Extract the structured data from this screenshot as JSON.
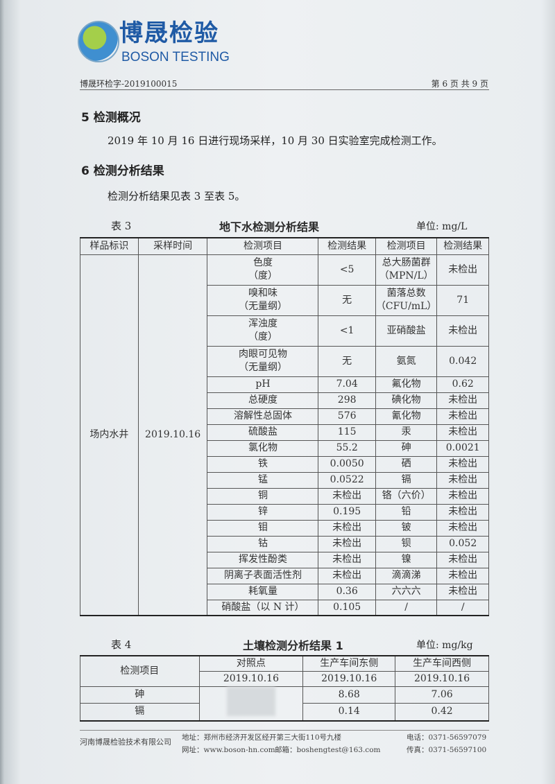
{
  "header": {
    "logo_cn": "博晟检验",
    "logo_en": "BOSON TESTING",
    "report_no": "博晟环检字-2019100015",
    "page_info": "第 6 页 共 9 页"
  },
  "section5": {
    "title": "5 检测概况",
    "text": "2019 年 10 月 16 日进行现场采样，10 月 30 日实验室完成检测工作。"
  },
  "section6": {
    "title": "6 检测分析结果",
    "text": "检测分析结果见表 3 至表 5。"
  },
  "table3": {
    "label": "表 3",
    "title": "地下水检测分析结果",
    "unit": "单位:  mg/L",
    "headers": [
      "样品标识",
      "采样时间",
      "检测项目",
      "检测结果",
      "检测项目",
      "检测结果"
    ],
    "sample_id": "场内水井",
    "sample_date": "2019.10.16",
    "rows": [
      [
        "色度\n（度）",
        "<5",
        "总大肠菌群\n（MPN/L）",
        "未检出"
      ],
      [
        "嗅和味\n（无量纲）",
        "无",
        "菌落总数\n（CFU/mL）",
        "71"
      ],
      [
        "浑浊度\n（度）",
        "<1",
        "亚硝酸盐",
        "未检出"
      ],
      [
        "肉眼可见物\n（无量纲）",
        "无",
        "氨氮",
        "0.042"
      ],
      [
        "pH",
        "7.04",
        "氟化物",
        "0.62"
      ],
      [
        "总硬度",
        "298",
        "碘化物",
        "未检出"
      ],
      [
        "溶解性总固体",
        "576",
        "氰化物",
        "未检出"
      ],
      [
        "硫酸盐",
        "115",
        "汞",
        "未检出"
      ],
      [
        "氯化物",
        "55.2",
        "砷",
        "0.0021"
      ],
      [
        "铁",
        "0.0050",
        "硒",
        "未检出"
      ],
      [
        "锰",
        "0.0522",
        "镉",
        "未检出"
      ],
      [
        "铜",
        "未检出",
        "铬（六价）",
        "未检出"
      ],
      [
        "锌",
        "0.195",
        "铅",
        "未检出"
      ],
      [
        "钼",
        "未检出",
        "铍",
        "未检出"
      ],
      [
        "钴",
        "未检出",
        "钡",
        "0.052"
      ],
      [
        "挥发性酚类",
        "未检出",
        "镍",
        "未检出"
      ],
      [
        "阴离子表面活性剂",
        "未检出",
        "滴滴涕",
        "未检出"
      ],
      [
        "耗氧量",
        "0.36",
        "六六六",
        "未检出"
      ],
      [
        "硝酸盐（以 N 计）",
        "0.105",
        "/",
        "/"
      ]
    ]
  },
  "table4": {
    "label": "表 4",
    "title": "土壤检测分析结果 1",
    "unit": "单位:  mg/kg",
    "item_header": "检测项目",
    "sites": [
      "对照点",
      "生产车间东侧",
      "生产车间西侧"
    ],
    "dates": [
      "2019.10.16",
      "2019.10.16",
      "2019.10.16"
    ],
    "rows": [
      [
        "砷",
        "",
        "8.68",
        "7.06"
      ],
      [
        "镉",
        "",
        "0.14",
        "0.42"
      ]
    ]
  },
  "footer": {
    "company": "河南博晟检验技术有限公司",
    "address": "地址：郑州市经济开发区经开第三大街110号九楼",
    "website": "网址：www.boson-hn.com",
    "email": "邮箱：boshengtest@163.com",
    "phone": "电话：0371-56597079",
    "fax": "传真：0371-56597100"
  }
}
